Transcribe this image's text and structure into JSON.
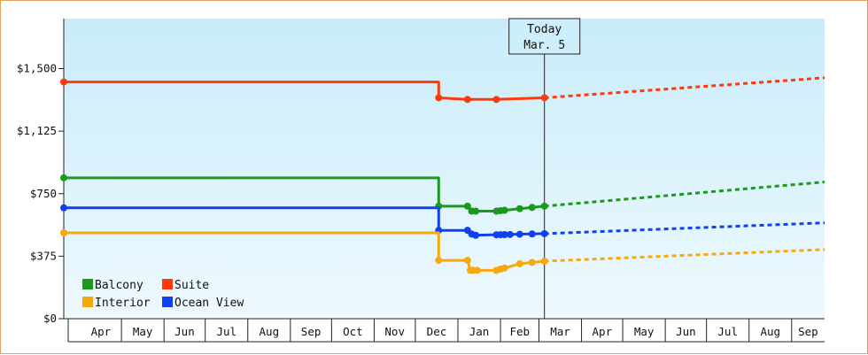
{
  "chart_data": {
    "type": "line",
    "title": "",
    "xlabel": "",
    "ylabel": "",
    "ylim": [
      0,
      1800
    ],
    "y_ticks": [
      {
        "value": 0,
        "label": "$0"
      },
      {
        "value": 375,
        "label": "$375"
      },
      {
        "value": 750,
        "label": "$750"
      },
      {
        "value": 1125,
        "label": "$1,125"
      },
      {
        "value": 1500,
        "label": "$1,500"
      }
    ],
    "x_range": [
      "2024-03-20",
      "2025-09-25"
    ],
    "x_month_labels": [
      {
        "label": "Apr",
        "date": "2024-04"
      },
      {
        "label": "May",
        "date": "2024-05"
      },
      {
        "label": "Jun",
        "date": "2024-06"
      },
      {
        "label": "Jul",
        "date": "2024-07"
      },
      {
        "label": "Aug",
        "date": "2024-08"
      },
      {
        "label": "Sep",
        "date": "2024-09"
      },
      {
        "label": "Oct",
        "date": "2024-10"
      },
      {
        "label": "Nov",
        "date": "2024-11"
      },
      {
        "label": "Dec",
        "date": "2024-12"
      },
      {
        "label": "Jan",
        "date": "2025-01"
      },
      {
        "label": "Feb",
        "date": "2025-02"
      },
      {
        "label": "Mar",
        "date": "2025-03"
      },
      {
        "label": "Apr",
        "date": "2025-04"
      },
      {
        "label": "May",
        "date": "2025-05"
      },
      {
        "label": "Jun",
        "date": "2025-06"
      },
      {
        "label": "Jul",
        "date": "2025-07"
      },
      {
        "label": "Aug",
        "date": "2025-08"
      },
      {
        "label": "Sep",
        "date": "2025-09"
      }
    ],
    "today": {
      "date": "2025-03-05",
      "line1": "Today",
      "line2": "Mar. 5"
    },
    "grid": false,
    "legend_position": "bottom-left",
    "series": [
      {
        "name": "Suite",
        "color": "#ff3a0a",
        "step": true,
        "points": [
          {
            "x": "2024-03-20",
            "y": 1420
          },
          {
            "x": "2024-12-18",
            "y": 1420
          },
          {
            "x": "2024-12-18",
            "y": 1325
          },
          {
            "x": "2025-01-08",
            "y": 1315
          },
          {
            "x": "2025-01-29",
            "y": 1315
          },
          {
            "x": "2025-03-05",
            "y": 1325
          }
        ],
        "markers": [
          "2024-03-20",
          "2024-12-18",
          "2025-01-08",
          "2025-01-29",
          "2025-03-05"
        ],
        "projection": {
          "from": {
            "x": "2025-03-05",
            "y": 1325
          },
          "to": {
            "x": "2025-09-25",
            "y": 1445
          }
        }
      },
      {
        "name": "Balcony",
        "color": "#1a9a1a",
        "step": true,
        "points": [
          {
            "x": "2024-03-20",
            "y": 845
          },
          {
            "x": "2024-12-18",
            "y": 845
          },
          {
            "x": "2024-12-18",
            "y": 675
          },
          {
            "x": "2025-01-08",
            "y": 675
          },
          {
            "x": "2025-01-11",
            "y": 645
          },
          {
            "x": "2025-01-29",
            "y": 645
          },
          {
            "x": "2025-02-15",
            "y": 660
          },
          {
            "x": "2025-03-05",
            "y": 675
          }
        ],
        "markers": [
          "2024-03-20",
          "2024-12-18",
          "2025-01-08",
          "2025-01-11",
          "2025-01-14",
          "2025-01-29",
          "2025-02-01",
          "2025-02-04",
          "2025-02-15",
          "2025-02-24",
          "2025-03-05"
        ],
        "projection": {
          "from": {
            "x": "2025-03-05",
            "y": 675
          },
          "to": {
            "x": "2025-09-25",
            "y": 820
          }
        }
      },
      {
        "name": "Ocean View",
        "color": "#1040f0",
        "step": true,
        "points": [
          {
            "x": "2024-03-20",
            "y": 665
          },
          {
            "x": "2024-12-18",
            "y": 665
          },
          {
            "x": "2024-12-18",
            "y": 530
          },
          {
            "x": "2025-01-08",
            "y": 530
          },
          {
            "x": "2025-01-12",
            "y": 500
          },
          {
            "x": "2025-03-05",
            "y": 510
          }
        ],
        "markers": [
          "2024-03-20",
          "2024-12-18",
          "2025-01-08",
          "2025-01-11",
          "2025-01-14",
          "2025-01-29",
          "2025-02-01",
          "2025-02-04",
          "2025-02-08",
          "2025-02-15",
          "2025-02-24",
          "2025-03-05"
        ],
        "projection": {
          "from": {
            "x": "2025-03-05",
            "y": 510
          },
          "to": {
            "x": "2025-09-25",
            "y": 575
          }
        }
      },
      {
        "name": "Interior",
        "color": "#f7a80d",
        "step": true,
        "points": [
          {
            "x": "2024-03-20",
            "y": 515
          },
          {
            "x": "2024-12-18",
            "y": 515
          },
          {
            "x": "2024-12-18",
            "y": 350
          },
          {
            "x": "2025-01-08",
            "y": 350
          },
          {
            "x": "2025-01-10",
            "y": 290
          },
          {
            "x": "2025-01-29",
            "y": 290
          },
          {
            "x": "2025-02-15",
            "y": 330
          },
          {
            "x": "2025-03-05",
            "y": 345
          }
        ],
        "markers": [
          "2024-03-20",
          "2024-12-18",
          "2025-01-08",
          "2025-01-10",
          "2025-01-12",
          "2025-01-15",
          "2025-01-29",
          "2025-02-01",
          "2025-02-04",
          "2025-02-15",
          "2025-02-24",
          "2025-03-05"
        ],
        "projection": {
          "from": {
            "x": "2025-03-05",
            "y": 345
          },
          "to": {
            "x": "2025-09-25",
            "y": 415
          }
        }
      }
    ],
    "legend": [
      {
        "name": "Balcony",
        "color": "#1a9a1a"
      },
      {
        "name": "Suite",
        "color": "#ff3a0a"
      },
      {
        "name": "Interior",
        "color": "#f7a80d"
      },
      {
        "name": "Ocean View",
        "color": "#1040f0"
      }
    ]
  }
}
